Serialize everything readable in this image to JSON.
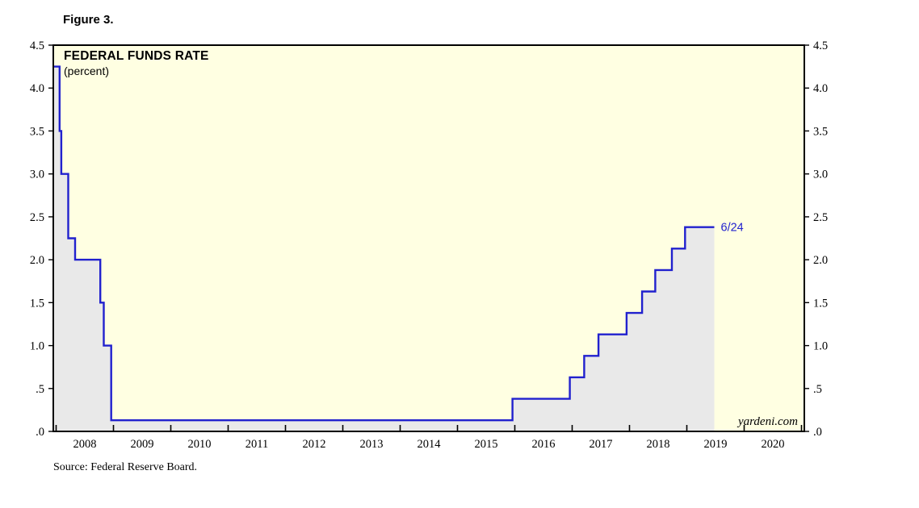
{
  "figure_label": "Figure 3.",
  "source": "Source: Federal Reserve Board.",
  "watermark": "yardeni.com",
  "colors": {
    "line": "#2121CE",
    "plot_background": "#FFFFE2",
    "area_fill": "#E9E9E9",
    "border": "#000000",
    "text": "#000000"
  },
  "chart_data": {
    "type": "line",
    "title": "FEDERAL FUNDS RATE",
    "subtitle": "(percent)",
    "ylabel": "percent",
    "ylim": [
      0,
      4.5
    ],
    "xlim": [
      2007.95,
      2021.05
    ],
    "grid": false,
    "legend": "none",
    "yticks": [
      {
        "v": 4.5,
        "label": "4.5"
      },
      {
        "v": 4.0,
        "label": "4.0"
      },
      {
        "v": 3.5,
        "label": "3.5"
      },
      {
        "v": 3.0,
        "label": "3.0"
      },
      {
        "v": 2.5,
        "label": "2.5"
      },
      {
        "v": 2.0,
        "label": "2.0"
      },
      {
        "v": 1.5,
        "label": "1.5"
      },
      {
        "v": 1.0,
        "label": "1.0"
      },
      {
        "v": 0.5,
        "label": ".5"
      },
      {
        "v": 0.0,
        "label": ".0"
      }
    ],
    "xtick_labels": [
      {
        "year": 2008,
        "label": "2008"
      },
      {
        "year": 2009,
        "label": "2009"
      },
      {
        "year": 2010,
        "label": "2010"
      },
      {
        "year": 2011,
        "label": "2011"
      },
      {
        "year": 2012,
        "label": "2012"
      },
      {
        "year": 2013,
        "label": "2013"
      },
      {
        "year": 2014,
        "label": "2014"
      },
      {
        "year": 2015,
        "label": "2015"
      },
      {
        "year": 2016,
        "label": "2016"
      },
      {
        "year": 2017,
        "label": "2017"
      },
      {
        "year": 2018,
        "label": "2018"
      },
      {
        "year": 2019,
        "label": "2019"
      },
      {
        "year": 2020,
        "label": "2020"
      }
    ],
    "xtick_marks": [
      2008,
      2009,
      2010,
      2011,
      2012,
      2013,
      2014,
      2015,
      2016,
      2017,
      2018,
      2019,
      2020,
      2021
    ],
    "series": [
      {
        "name": "Federal Funds Rate",
        "end_x": 2019.48,
        "end_label": "6/24",
        "step_points": [
          [
            2007.95,
            4.25
          ],
          [
            2008.06,
            3.5
          ],
          [
            2008.09,
            3.0
          ],
          [
            2008.21,
            2.25
          ],
          [
            2008.33,
            2.0
          ],
          [
            2008.77,
            1.5
          ],
          [
            2008.83,
            1.0
          ],
          [
            2008.96,
            0.13
          ],
          [
            2015.96,
            0.38
          ],
          [
            2016.96,
            0.63
          ],
          [
            2017.21,
            0.88
          ],
          [
            2017.46,
            1.13
          ],
          [
            2017.95,
            1.38
          ],
          [
            2018.22,
            1.63
          ],
          [
            2018.45,
            1.88
          ],
          [
            2018.74,
            2.13
          ],
          [
            2018.97,
            2.38
          ]
        ]
      }
    ]
  }
}
